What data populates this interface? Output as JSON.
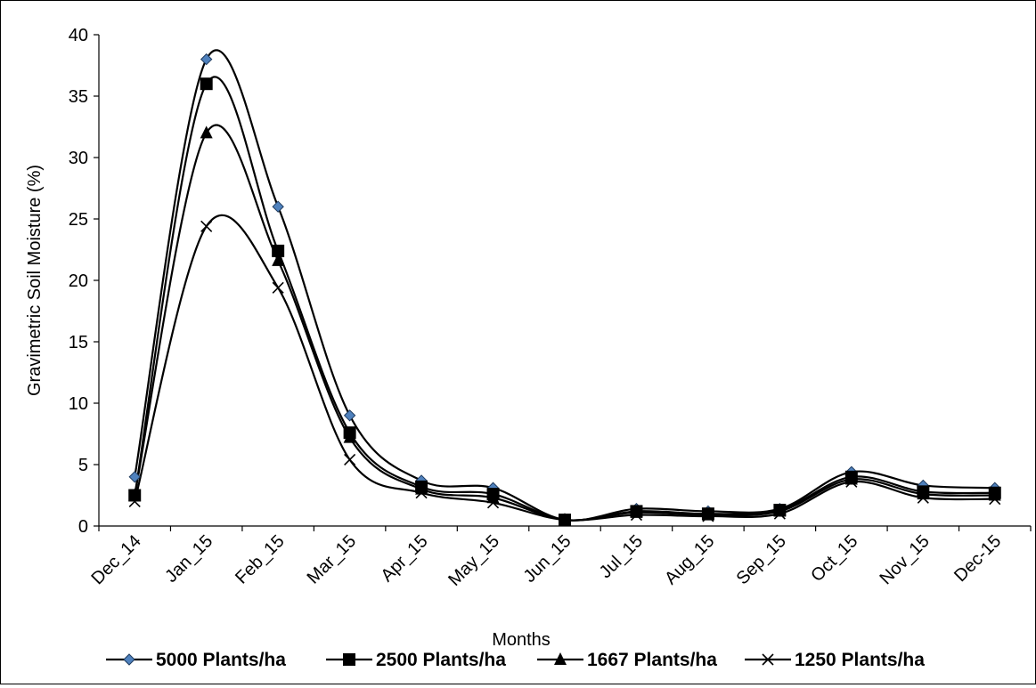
{
  "chart_data": {
    "type": "line",
    "xlabel": "Months",
    "ylabel": "Gravimetric Soil Moisture (%)",
    "ylim": [
      0,
      40
    ],
    "yticks": [
      0,
      5,
      10,
      15,
      20,
      25,
      30,
      35,
      40
    ],
    "grid": false,
    "smoothed": true,
    "legend_position": "bottom",
    "categories": [
      "Dec_14",
      "Jan_15",
      "Feb_15",
      "Mar_15",
      "Apr_15",
      "May_15",
      "Jun_15",
      "Jul_15",
      "Aug_15",
      "Sep_15",
      "Oct_15",
      "Nov_15",
      "Dec-15"
    ],
    "series": [
      {
        "name": "5000 Plants/ha",
        "marker": "diamond",
        "marker_color": "#4f81bd",
        "values": [
          4.0,
          38.0,
          26.0,
          9.0,
          3.7,
          3.1,
          0.5,
          1.4,
          1.2,
          1.4,
          4.4,
          3.3,
          3.1
        ]
      },
      {
        "name": "2500 Plants/ha",
        "marker": "square",
        "marker_color": "#000000",
        "values": [
          2.5,
          36.0,
          22.4,
          7.6,
          3.2,
          2.6,
          0.5,
          1.2,
          1.0,
          1.3,
          4.0,
          2.8,
          2.7
        ]
      },
      {
        "name": "1667 Plants/ha",
        "marker": "triangle",
        "marker_color": "#000000",
        "values": [
          2.5,
          32.0,
          21.6,
          7.2,
          3.0,
          2.3,
          0.5,
          1.1,
          0.9,
          1.2,
          3.8,
          2.6,
          2.5
        ]
      },
      {
        "name": "1250 Plants/ha",
        "marker": "x",
        "marker_color": "#000000",
        "values": [
          2.0,
          24.4,
          19.4,
          5.4,
          2.7,
          1.9,
          0.5,
          0.9,
          0.8,
          1.0,
          3.6,
          2.3,
          2.2
        ]
      }
    ]
  }
}
